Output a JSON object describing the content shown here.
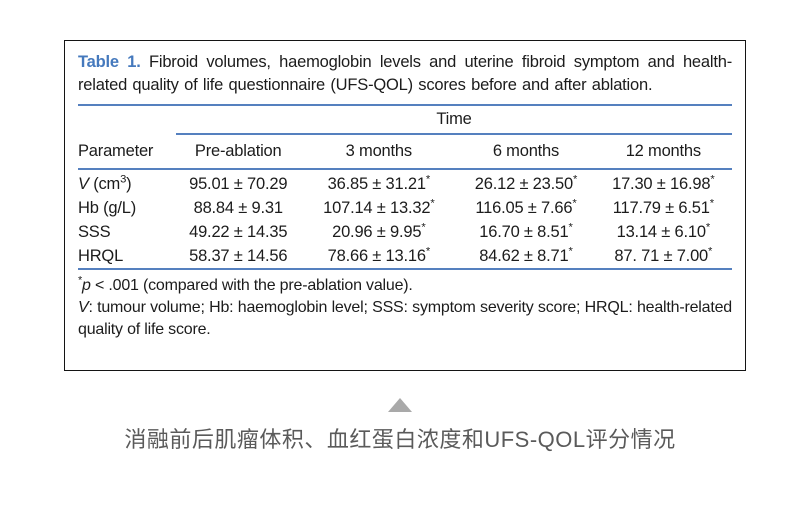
{
  "table": {
    "label": "Table 1.",
    "title": "Fibroid volumes, haemoglobin levels and uterine fibroid symptom and health-related quality of life questionnaire (UFS-QOL) scores before and after ablation.",
    "time_label": "Time",
    "columns": [
      "Parameter",
      "Pre-ablation",
      "3 months",
      "6 months",
      "12 months"
    ],
    "rows": [
      {
        "param": {
          "italic": "V",
          "rest": " (cm",
          "sup": "3",
          "end": ")"
        },
        "values": [
          "95.01 ± 70.29",
          "36.85 ± 31.21*",
          "26.12 ± 23.50*",
          "17.30 ± 16.98*"
        ]
      },
      {
        "param": {
          "plain": "Hb (g/L)"
        },
        "values": [
          "88.84 ± 9.31",
          "107.14 ± 13.32*",
          "116.05 ± 7.66*",
          "117.79 ± 6.51*"
        ]
      },
      {
        "param": {
          "plain": "SSS"
        },
        "values": [
          "49.22 ± 14.35",
          "20.96 ± 9.95*",
          "16.70 ± 8.51*",
          "13.14 ± 6.10*"
        ]
      },
      {
        "param": {
          "plain": "HRQL"
        },
        "values": [
          "58.37 ± 14.56",
          "78.66 ± 13.16*",
          "84.62 ± 8.71*",
          "87. 71 ± 7.00*"
        ]
      }
    ],
    "footnote_significance": {
      "star": "*",
      "p": "p",
      "rest": " < .001 (compared with the pre-ablation value)."
    },
    "footnote_abbrev": {
      "v": "V",
      "rest": ": tumour volume; Hb: haemoglobin level; SSS: symptom severity score; HRQL: health-related quality of life score."
    }
  },
  "caption": {
    "text": "消融前后肌瘤体积、血红蛋白浓度和UFS-QOL评分情况"
  },
  "colors": {
    "accent_blue": "#5580bf",
    "table_label_blue": "#4579bd",
    "caption_gray": "#5a5a5a",
    "triangle_gray": "#a9a9a9"
  }
}
